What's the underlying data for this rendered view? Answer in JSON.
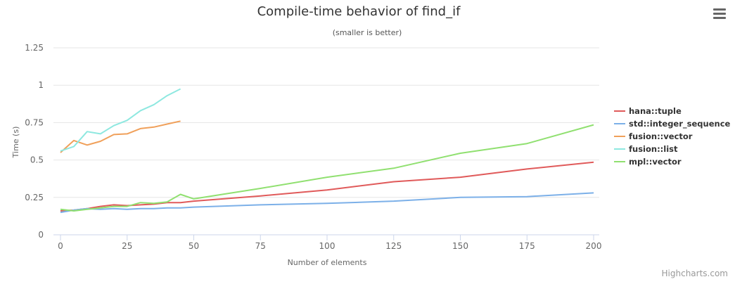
{
  "menu": {
    "icon": "hamburger-menu-icon"
  },
  "credits": "Highcharts.com",
  "chart_data": {
    "type": "line",
    "title": "Compile-time behavior of find_if",
    "subtitle": "(smaller is better)",
    "xlabel": "Number of elements",
    "ylabel": "Time (s)",
    "xlim": [
      0,
      200
    ],
    "ylim": [
      0,
      1.25
    ],
    "xticks": [
      0,
      25,
      50,
      75,
      100,
      125,
      150,
      175,
      200
    ],
    "yticks": [
      0,
      0.25,
      0.5,
      0.75,
      1,
      1.25
    ],
    "ytick_labels": [
      "0",
      "0.25",
      "0.5",
      "0.75",
      "1",
      "1.25"
    ],
    "grid": "horizontal",
    "legend_position": "right",
    "series": [
      {
        "name": "hana::tuple",
        "color": "#e05a5a",
        "points": [
          [
            0,
            0.16
          ],
          [
            5,
            0.165
          ],
          [
            10,
            0.175
          ],
          [
            15,
            0.19
          ],
          [
            20,
            0.2
          ],
          [
            25,
            0.195
          ],
          [
            30,
            0.2
          ],
          [
            35,
            0.205
          ],
          [
            40,
            0.215
          ],
          [
            45,
            0.215
          ],
          [
            50,
            0.225
          ],
          [
            75,
            0.26
          ],
          [
            100,
            0.3
          ],
          [
            125,
            0.355
          ],
          [
            150,
            0.385
          ],
          [
            175,
            0.44
          ],
          [
            200,
            0.485
          ]
        ]
      },
      {
        "name": "std::integer_sequence",
        "color": "#7cb0e8",
        "points": [
          [
            0,
            0.15
          ],
          [
            5,
            0.165
          ],
          [
            10,
            0.175
          ],
          [
            15,
            0.17
          ],
          [
            20,
            0.175
          ],
          [
            25,
            0.17
          ],
          [
            30,
            0.175
          ],
          [
            35,
            0.175
          ],
          [
            40,
            0.18
          ],
          [
            45,
            0.18
          ],
          [
            50,
            0.185
          ],
          [
            75,
            0.2
          ],
          [
            100,
            0.21
          ],
          [
            125,
            0.225
          ],
          [
            150,
            0.25
          ],
          [
            175,
            0.255
          ],
          [
            200,
            0.28
          ]
        ]
      },
      {
        "name": "fusion::vector",
        "color": "#f0a05a",
        "points": [
          [
            0,
            0.55
          ],
          [
            5,
            0.63
          ],
          [
            10,
            0.6
          ],
          [
            15,
            0.625
          ],
          [
            20,
            0.67
          ],
          [
            25,
            0.675
          ],
          [
            30,
            0.71
          ],
          [
            35,
            0.72
          ],
          [
            40,
            0.74
          ],
          [
            45,
            0.76
          ]
        ]
      },
      {
        "name": "fusion::list",
        "color": "#8ee8e0",
        "points": [
          [
            0,
            0.56
          ],
          [
            5,
            0.59
          ],
          [
            10,
            0.69
          ],
          [
            15,
            0.675
          ],
          [
            20,
            0.73
          ],
          [
            25,
            0.765
          ],
          [
            30,
            0.83
          ],
          [
            35,
            0.87
          ],
          [
            40,
            0.93
          ],
          [
            45,
            0.975
          ]
        ]
      },
      {
        "name": "mpl::vector",
        "color": "#90e070",
        "points": [
          [
            0,
            0.17
          ],
          [
            5,
            0.16
          ],
          [
            10,
            0.17
          ],
          [
            15,
            0.18
          ],
          [
            20,
            0.19
          ],
          [
            25,
            0.19
          ],
          [
            30,
            0.215
          ],
          [
            35,
            0.21
          ],
          [
            40,
            0.22
          ],
          [
            45,
            0.27
          ],
          [
            50,
            0.24
          ],
          [
            75,
            0.31
          ],
          [
            100,
            0.385
          ],
          [
            125,
            0.445
          ],
          [
            150,
            0.545
          ],
          [
            175,
            0.61
          ],
          [
            200,
            0.735
          ]
        ]
      }
    ]
  }
}
